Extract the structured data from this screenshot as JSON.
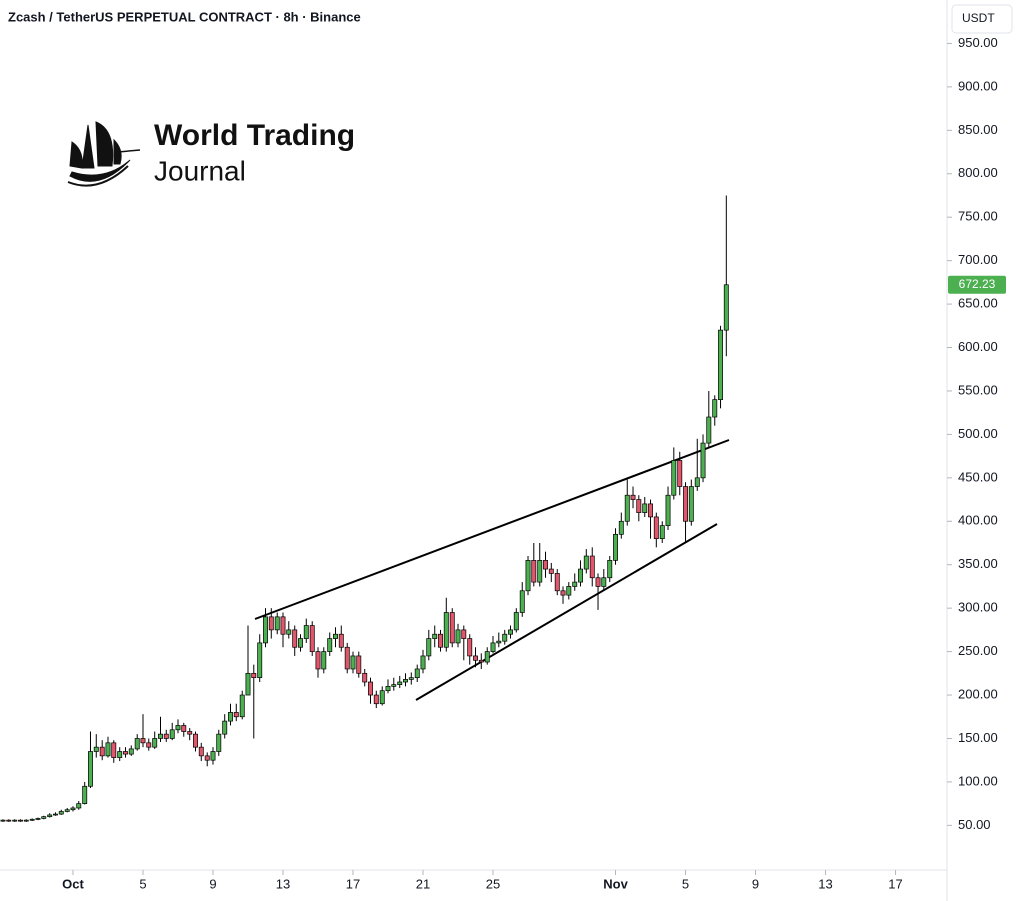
{
  "chart_data": {
    "type": "candlestick",
    "title": "Zcash / TetherUS PERPETUAL CONTRACT · 8h · Binance",
    "currency": "USDT",
    "brand": [
      "World Trading",
      "Journal"
    ],
    "colors": {
      "up": "#4caf50",
      "down": "#e0566a"
    },
    "ylim": [
      0,
      1000
    ],
    "yticks": [
      {
        "value": 50,
        "label": "50.00"
      },
      {
        "value": 100,
        "label": "100.00"
      },
      {
        "value": 150,
        "label": "150.00"
      },
      {
        "value": 200,
        "label": "200.00"
      },
      {
        "value": 250,
        "label": "250.00"
      },
      {
        "value": 300,
        "label": "300.00"
      },
      {
        "value": 350,
        "label": "350.00"
      },
      {
        "value": 400,
        "label": "400.00"
      },
      {
        "value": 450,
        "label": "450.00"
      },
      {
        "value": 500,
        "label": "500.00"
      },
      {
        "value": 550,
        "label": "550.00"
      },
      {
        "value": 600,
        "label": "600.00"
      },
      {
        "value": 650,
        "label": "650.00"
      },
      {
        "value": 700,
        "label": "700.00"
      },
      {
        "value": 750,
        "label": "750.00"
      },
      {
        "value": 800,
        "label": "800.00"
      },
      {
        "value": 850,
        "label": "850.00"
      },
      {
        "value": 900,
        "label": "900.00"
      },
      {
        "value": 950,
        "label": "950.00"
      }
    ],
    "xlim": [
      -4.17,
      49.94
    ],
    "xticks": [
      {
        "value": 0,
        "label": "Oct"
      },
      {
        "value": 4,
        "label": "5"
      },
      {
        "value": 8,
        "label": "9"
      },
      {
        "value": 12,
        "label": "13"
      },
      {
        "value": 16,
        "label": "17"
      },
      {
        "value": 20,
        "label": "21"
      },
      {
        "value": 24,
        "label": "25"
      },
      {
        "value": 31,
        "label": "Nov"
      },
      {
        "value": 35,
        "label": "5"
      },
      {
        "value": 39,
        "label": "9"
      },
      {
        "value": 43,
        "label": "13"
      },
      {
        "value": 47,
        "label": "17"
      }
    ],
    "candle_fields": [
      "x",
      "open",
      "high",
      "low",
      "close"
    ],
    "candles": [
      [
        -4,
        55,
        57,
        54,
        56
      ],
      [
        -3.67,
        56,
        57,
        54,
        55
      ],
      [
        -3.33,
        55,
        57,
        54,
        56
      ],
      [
        -3,
        56,
        57,
        54,
        55
      ],
      [
        -2.67,
        55,
        57,
        54,
        56
      ],
      [
        -2.33,
        56,
        58,
        55,
        57
      ],
      [
        -2,
        57,
        59,
        56,
        58
      ],
      [
        -1.67,
        58,
        61,
        57,
        60
      ],
      [
        -1.33,
        60,
        64,
        59,
        62
      ],
      [
        -1,
        62,
        65,
        61,
        63
      ],
      [
        -0.67,
        63,
        68,
        62,
        66
      ],
      [
        -0.33,
        66,
        70,
        65,
        68
      ],
      [
        0,
        68,
        72,
        66,
        70
      ],
      [
        0.33,
        70,
        78,
        68,
        75
      ],
      [
        0.67,
        75,
        100,
        74,
        95
      ],
      [
        1,
        95,
        158,
        93,
        135
      ],
      [
        1.33,
        135,
        155,
        128,
        140
      ],
      [
        1.67,
        140,
        148,
        125,
        130
      ],
      [
        2,
        130,
        152,
        128,
        145
      ],
      [
        2.33,
        145,
        148,
        122,
        128
      ],
      [
        2.67,
        128,
        140,
        124,
        135
      ],
      [
        3,
        135,
        140,
        128,
        132
      ],
      [
        3.33,
        132,
        142,
        130,
        138
      ],
      [
        3.67,
        138,
        155,
        136,
        150
      ],
      [
        4,
        150,
        178,
        140,
        145
      ],
      [
        4.33,
        145,
        150,
        136,
        140
      ],
      [
        4.67,
        140,
        158,
        138,
        150
      ],
      [
        5,
        150,
        175,
        146,
        155
      ],
      [
        5.33,
        155,
        160,
        146,
        150
      ],
      [
        5.67,
        150,
        168,
        148,
        160
      ],
      [
        6,
        160,
        172,
        156,
        165
      ],
      [
        6.33,
        165,
        168,
        152,
        158
      ],
      [
        6.67,
        158,
        162,
        148,
        155
      ],
      [
        7,
        155,
        158,
        135,
        140
      ],
      [
        7.33,
        140,
        145,
        124,
        130
      ],
      [
        7.67,
        130,
        134,
        118,
        125
      ],
      [
        8,
        125,
        140,
        120,
        135
      ],
      [
        8.33,
        135,
        160,
        130,
        155
      ],
      [
        8.67,
        155,
        178,
        150,
        170
      ],
      [
        9,
        170,
        190,
        165,
        180
      ],
      [
        9.33,
        180,
        190,
        170,
        175
      ],
      [
        9.67,
        175,
        205,
        172,
        200
      ],
      [
        10,
        200,
        280,
        200,
        225
      ],
      [
        10.33,
        225,
        235,
        150,
        220
      ],
      [
        10.67,
        220,
        270,
        215,
        260
      ],
      [
        11,
        260,
        300,
        255,
        290
      ],
      [
        11.33,
        290,
        300,
        265,
        275
      ],
      [
        11.67,
        275,
        295,
        270,
        290
      ],
      [
        12,
        290,
        295,
        255,
        270
      ],
      [
        12.33,
        270,
        285,
        265,
        275
      ],
      [
        12.67,
        275,
        280,
        245,
        255
      ],
      [
        13,
        255,
        270,
        250,
        265
      ],
      [
        13.33,
        265,
        288,
        260,
        280
      ],
      [
        13.67,
        280,
        285,
        245,
        250
      ],
      [
        14,
        250,
        255,
        220,
        230
      ],
      [
        14.33,
        230,
        255,
        225,
        250
      ],
      [
        14.67,
        250,
        272,
        245,
        265
      ],
      [
        15,
        265,
        278,
        255,
        270
      ],
      [
        15.33,
        270,
        280,
        250,
        255
      ],
      [
        15.67,
        255,
        260,
        225,
        230
      ],
      [
        16,
        230,
        250,
        225,
        245
      ],
      [
        16.33,
        245,
        250,
        220,
        225
      ],
      [
        16.67,
        225,
        230,
        210,
        215
      ],
      [
        17,
        215,
        220,
        190,
        200
      ],
      [
        17.33,
        200,
        205,
        185,
        190
      ],
      [
        17.67,
        190,
        210,
        188,
        205
      ],
      [
        18,
        205,
        218,
        202,
        210
      ],
      [
        18.33,
        210,
        220,
        205,
        212
      ],
      [
        18.67,
        212,
        222,
        208,
        215
      ],
      [
        19,
        215,
        225,
        210,
        218
      ],
      [
        19.33,
        218,
        226,
        212,
        220
      ],
      [
        19.67,
        220,
        235,
        215,
        230
      ],
      [
        20,
        230,
        252,
        225,
        245
      ],
      [
        20.33,
        245,
        275,
        240,
        265
      ],
      [
        20.67,
        265,
        280,
        255,
        270
      ],
      [
        21,
        270,
        275,
        250,
        255
      ],
      [
        21.33,
        255,
        312,
        250,
        295
      ],
      [
        21.67,
        295,
        300,
        255,
        260
      ],
      [
        22,
        260,
        282,
        255,
        275
      ],
      [
        22.33,
        275,
        280,
        240,
        265
      ],
      [
        22.67,
        265,
        270,
        235,
        245
      ],
      [
        23,
        245,
        255,
        232,
        240
      ],
      [
        23.33,
        240,
        248,
        230,
        238
      ],
      [
        23.67,
        238,
        255,
        235,
        250
      ],
      [
        24,
        250,
        268,
        248,
        260
      ],
      [
        24.33,
        260,
        272,
        255,
        262
      ],
      [
        24.67,
        262,
        275,
        258,
        270
      ],
      [
        25,
        270,
        280,
        265,
        275
      ],
      [
        25.33,
        275,
        300,
        272,
        295
      ],
      [
        25.67,
        295,
        330,
        290,
        320
      ],
      [
        26,
        320,
        360,
        315,
        355
      ],
      [
        26.33,
        355,
        375,
        325,
        330
      ],
      [
        26.67,
        330,
        375,
        325,
        355
      ],
      [
        27,
        355,
        365,
        335,
        345
      ],
      [
        27.33,
        345,
        352,
        330,
        340
      ],
      [
        27.67,
        340,
        345,
        315,
        320
      ],
      [
        28,
        320,
        325,
        305,
        315
      ],
      [
        28.33,
        315,
        330,
        310,
        325
      ],
      [
        28.67,
        325,
        340,
        320,
        330
      ],
      [
        29,
        330,
        355,
        325,
        345
      ],
      [
        29.33,
        345,
        368,
        340,
        360
      ],
      [
        29.67,
        360,
        370,
        325,
        335
      ],
      [
        30,
        335,
        340,
        298,
        325
      ],
      [
        30.33,
        325,
        345,
        320,
        335
      ],
      [
        30.67,
        335,
        360,
        330,
        355
      ],
      [
        31,
        355,
        392,
        350,
        385
      ],
      [
        31.33,
        385,
        410,
        380,
        400
      ],
      [
        31.67,
        400,
        448,
        395,
        430
      ],
      [
        32,
        430,
        440,
        415,
        425
      ],
      [
        32.33,
        425,
        430,
        400,
        410
      ],
      [
        32.67,
        410,
        428,
        405,
        420
      ],
      [
        33,
        420,
        425,
        380,
        405
      ],
      [
        33.33,
        405,
        410,
        370,
        380
      ],
      [
        33.67,
        380,
        400,
        375,
        395
      ],
      [
        34,
        395,
        440,
        390,
        430
      ],
      [
        34.33,
        430,
        485,
        425,
        470
      ],
      [
        34.67,
        470,
        480,
        430,
        440
      ],
      [
        35,
        440,
        445,
        375,
        400
      ],
      [
        35.33,
        400,
        448,
        395,
        440
      ],
      [
        35.67,
        440,
        495,
        435,
        450
      ],
      [
        36,
        450,
        500,
        445,
        490
      ],
      [
        36.33,
        490,
        550,
        485,
        520
      ],
      [
        36.67,
        520,
        545,
        510,
        540
      ],
      [
        37,
        540,
        625,
        530,
        620
      ],
      [
        37.33,
        620,
        775,
        590,
        672.23
      ]
    ]
  }
}
